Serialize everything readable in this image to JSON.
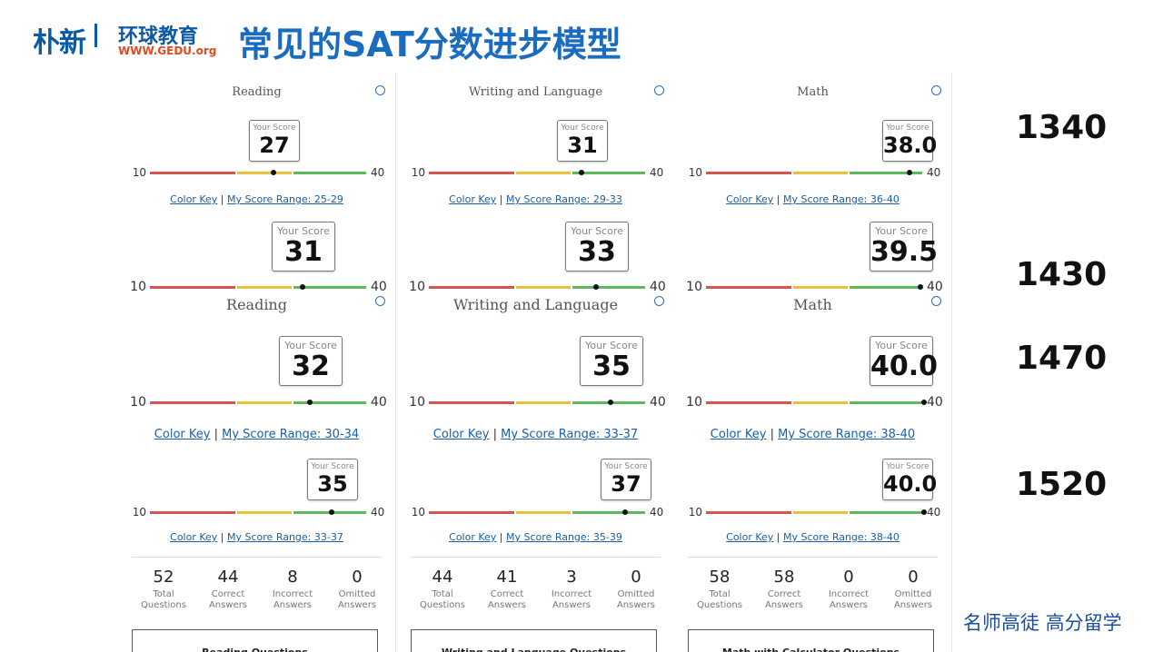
{
  "header": {
    "logo_cn": "朴新",
    "logo_brand": "环球教育",
    "logo_url": "WWW.GEDU.org",
    "title": "常见的SAT分数进步模型"
  },
  "rows": [
    {
      "total": "1340",
      "panels": [
        {
          "section": "Reading",
          "score_label": "Your Score",
          "score": "27",
          "min": 10,
          "max": 40,
          "color_key": "Color Key",
          "score_range": "My Score Range: 25-29"
        },
        {
          "section": "Writing and Language",
          "score_label": "Your Score",
          "score": "31",
          "min": 10,
          "max": 40,
          "color_key": "Color Key",
          "score_range": "My Score Range: 29-33"
        },
        {
          "section": "Math",
          "score_label": "Your Score",
          "score": "38.0",
          "min": 10,
          "max": 40,
          "color_key": "Color Key",
          "score_range": "My Score Range: 36-40"
        }
      ]
    },
    {
      "total": "1430",
      "panels": [
        {
          "score_label": "Your Score",
          "score": "31",
          "min": 10,
          "max": 40
        },
        {
          "score_label": "Your Score",
          "score": "33",
          "min": 10,
          "max": 40
        },
        {
          "score_label": "Your Score",
          "score": "39.5",
          "min": 10,
          "max": 40
        }
      ]
    },
    {
      "total": "1470",
      "panels": [
        {
          "section": "Reading",
          "score_label": "Your Score",
          "score": "32",
          "min": 10,
          "max": 40,
          "color_key": "Color Key",
          "score_range": "My Score Range: 30-34"
        },
        {
          "section": "Writing and Language",
          "score_label": "Your Score",
          "score": "35",
          "min": 10,
          "max": 40,
          "color_key": "Color Key",
          "score_range": "My Score Range: 33-37"
        },
        {
          "section": "Math",
          "score_label": "Your Score",
          "score": "40.0",
          "min": 10,
          "max": 40,
          "color_key": "Color Key",
          "score_range": "My Score Range: 38-40"
        }
      ]
    },
    {
      "total": "1520",
      "panels": [
        {
          "score_label": "Your Score",
          "score": "35",
          "min": 10,
          "max": 40,
          "color_key": "Color Key",
          "score_range": "My Score Range: 33-37",
          "stats": [
            {
              "value": 52,
              "label": "Total Questions"
            },
            {
              "value": 44,
              "label": "Correct Answers"
            },
            {
              "value": 8,
              "label": "Incorrect Answers"
            },
            {
              "value": 0,
              "label": "Omitted Answers"
            }
          ],
          "button": "Reading Questions"
        },
        {
          "score_label": "Your Score",
          "score": "37",
          "min": 10,
          "max": 40,
          "color_key": "Color Key",
          "score_range": "My Score Range: 35-39",
          "stats": [
            {
              "value": 44,
              "label": "Total Questions"
            },
            {
              "value": 41,
              "label": "Correct Answers"
            },
            {
              "value": 3,
              "label": "Incorrect Answers"
            },
            {
              "value": 0,
              "label": "Omitted Answers"
            }
          ],
          "button": "Writing and Language Questions"
        },
        {
          "score_label": "Your Score",
          "score": "40.0",
          "min": 10,
          "max": 40,
          "color_key": "Color Key",
          "score_range": "My Score Range: 38-40",
          "stats": [
            {
              "value": 58,
              "label": "Total Questions"
            },
            {
              "value": 58,
              "label": "Correct Answers"
            },
            {
              "value": 0,
              "label": "Incorrect Answers"
            },
            {
              "value": 0,
              "label": "Omitted Answers"
            }
          ],
          "button": "Math with Calculator Questions"
        }
      ]
    }
  ],
  "footer": "名师高徒 高分留学"
}
